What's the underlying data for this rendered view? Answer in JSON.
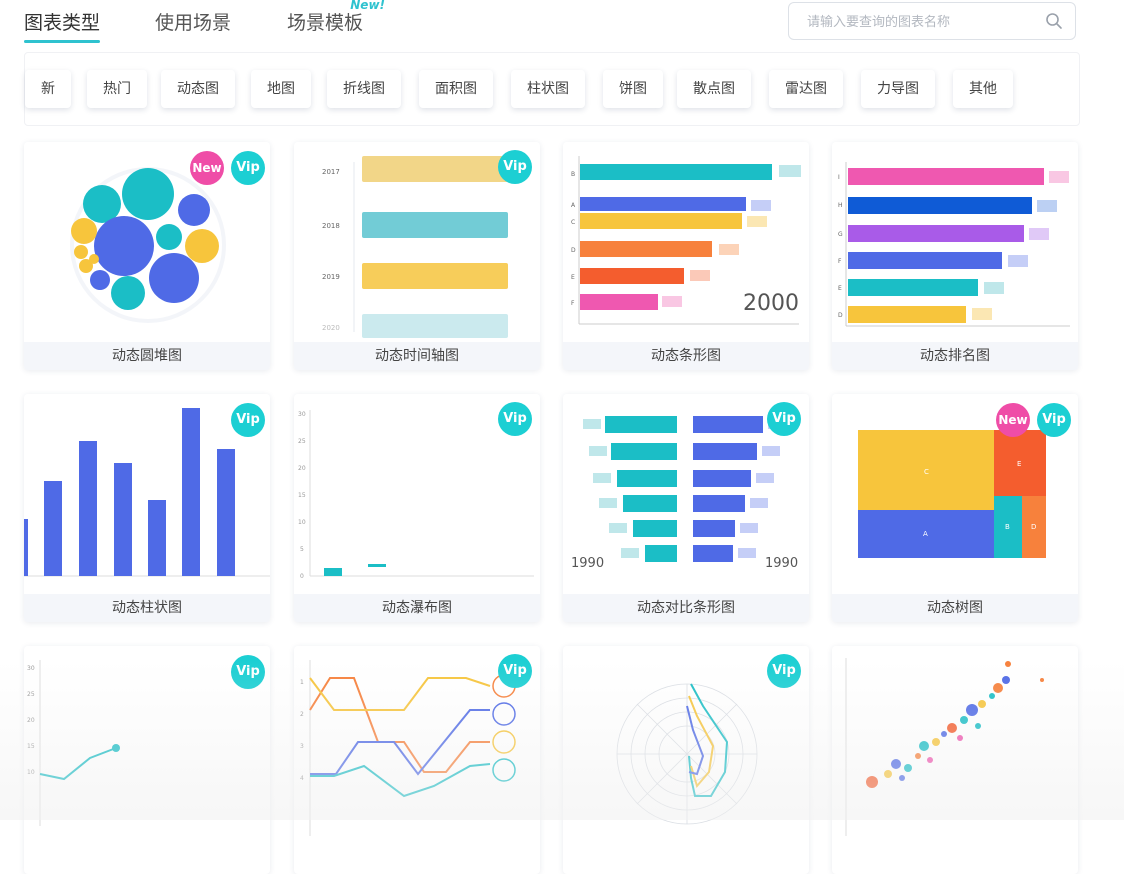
{
  "header": {
    "tabs": [
      {
        "label": "图表类型",
        "active": true
      },
      {
        "label": "使用场景",
        "active": false
      },
      {
        "label": "场景模板",
        "active": false,
        "badge": "New!"
      }
    ],
    "search_placeholder": "请输入要查询的图表名称"
  },
  "filters": [
    "新",
    "热门",
    "动态图",
    "地图",
    "折线图",
    "面积图",
    "柱状图",
    "饼图",
    "散点图",
    "雷达图",
    "力导图",
    "其他"
  ],
  "badges": {
    "vip": "Vip",
    "new": "New"
  },
  "colors": {
    "accent": "#2ec2cf",
    "vip_badge": "#1ccfd3",
    "new_badge": "#ef4da7",
    "blue": "#4f6ae6",
    "teal": "#1bbec6",
    "yellow": "#f7c53c",
    "orange": "#f7813c",
    "pink": "#ef58b0",
    "purple": "#a95be8"
  },
  "cards": [
    {
      "title": "动态圆堆图",
      "vip": true,
      "new": true
    },
    {
      "title": "动态时间轴图",
      "vip": true,
      "new": false,
      "year_labels": [
        "2017",
        "2018",
        "2019",
        "2020"
      ]
    },
    {
      "title": "动态条形图",
      "vip": false,
      "new": false,
      "year_label": "2000",
      "bar_letters": [
        "B",
        "A",
        "C",
        "D",
        "E",
        "F"
      ]
    },
    {
      "title": "动态排名图",
      "vip": false,
      "new": false,
      "bar_letters": [
        "I",
        "H",
        "G",
        "F",
        "E",
        "D"
      ]
    },
    {
      "title": "动态柱状图",
      "vip": true,
      "new": false
    },
    {
      "title": "动态瀑布图",
      "vip": true,
      "new": false,
      "axis_ticks": [
        "30",
        "25",
        "20",
        "15",
        "10",
        "5",
        "0"
      ]
    },
    {
      "title": "动态对比条形图",
      "vip": true,
      "new": false,
      "year_left": "1990",
      "year_right": "1990"
    },
    {
      "title": "动态树图",
      "vip": true,
      "new": true,
      "labels": [
        "C",
        "E",
        "A",
        "B",
        "D"
      ]
    },
    {
      "title": "",
      "vip": true,
      "new": false,
      "axis_ticks": [
        "30",
        "25",
        "20",
        "15",
        "10"
      ]
    },
    {
      "title": "",
      "vip": true,
      "new": false,
      "axis_ticks": [
        "1",
        "2",
        "3",
        "4"
      ]
    },
    {
      "title": "",
      "vip": true,
      "new": false
    },
    {
      "title": "",
      "vip": false,
      "new": false
    }
  ]
}
